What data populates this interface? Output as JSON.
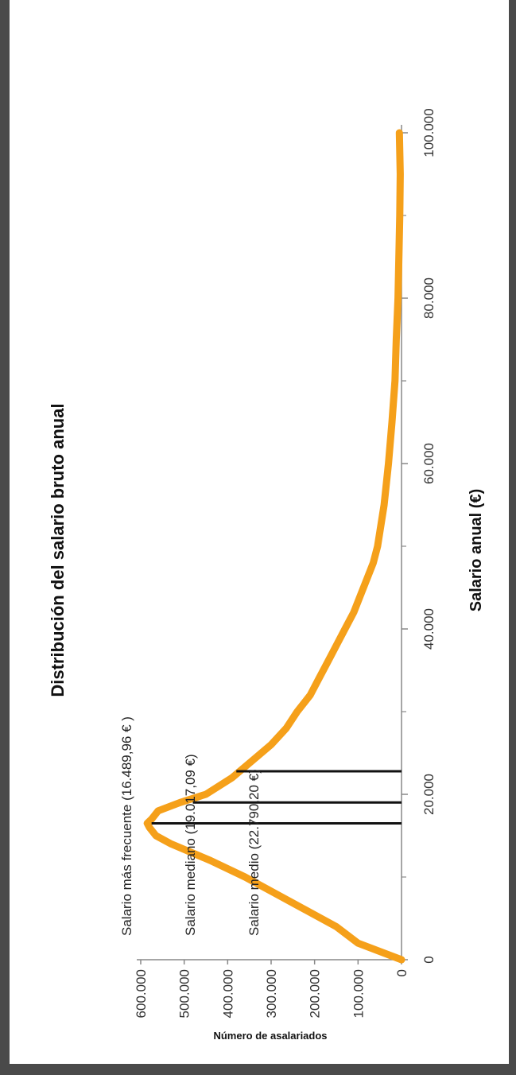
{
  "chart_data": {
    "type": "line",
    "title": "Distribución del salario bruto anual",
    "xlabel": "Salario anual (€)",
    "ylabel": "Número de asalariados",
    "xlim": [
      0,
      100000
    ],
    "ylim": [
      0,
      600000
    ],
    "x_ticks": [
      "0",
      "20.000",
      "40.000",
      "60.000",
      "80.000",
      "100.000"
    ],
    "y_ticks": [
      "0",
      "100.000",
      "200.000",
      "300.000",
      "400.000",
      "500.000",
      "600.000"
    ],
    "x_tick_values": [
      0,
      20000,
      40000,
      60000,
      80000,
      100000
    ],
    "y_tick_values": [
      0,
      100000,
      200000,
      300000,
      400000,
      500000,
      600000
    ],
    "series": [
      {
        "color": "#f5a01a",
        "x": [
          0,
          2000,
          4000,
          6000,
          8000,
          10000,
          12000,
          14000,
          15000,
          16000,
          16500,
          17000,
          18000,
          19000,
          20000,
          22000,
          24000,
          26000,
          28000,
          30000,
          32000,
          34000,
          36000,
          38000,
          40000,
          42000,
          44000,
          46000,
          48000,
          50000,
          55000,
          60000,
          65000,
          70000,
          75000,
          80000,
          85000,
          90000,
          95000,
          100000
        ],
        "y": [
          0,
          100000,
          150000,
          220000,
          290000,
          360000,
          440000,
          530000,
          565000,
          580000,
          585000,
          575000,
          560000,
          510000,
          450000,
          390000,
          345000,
          300000,
          265000,
          240000,
          210000,
          190000,
          170000,
          150000,
          130000,
          110000,
          95000,
          80000,
          65000,
          55000,
          40000,
          30000,
          22000,
          15000,
          12000,
          8000,
          6000,
          4000,
          3000,
          5000
        ]
      }
    ],
    "annotations": [
      {
        "text": "Salario más frecuente (16.489,96 € )",
        "x": 16489.96,
        "y": 575000
      },
      {
        "text": "Salario mediano (19.017,09 €)",
        "x": 19017.09,
        "y": 480000
      },
      {
        "text": "Salario medio (22.790,20 €)",
        "x": 22790.2,
        "y": 380000
      }
    ],
    "grid": false
  }
}
